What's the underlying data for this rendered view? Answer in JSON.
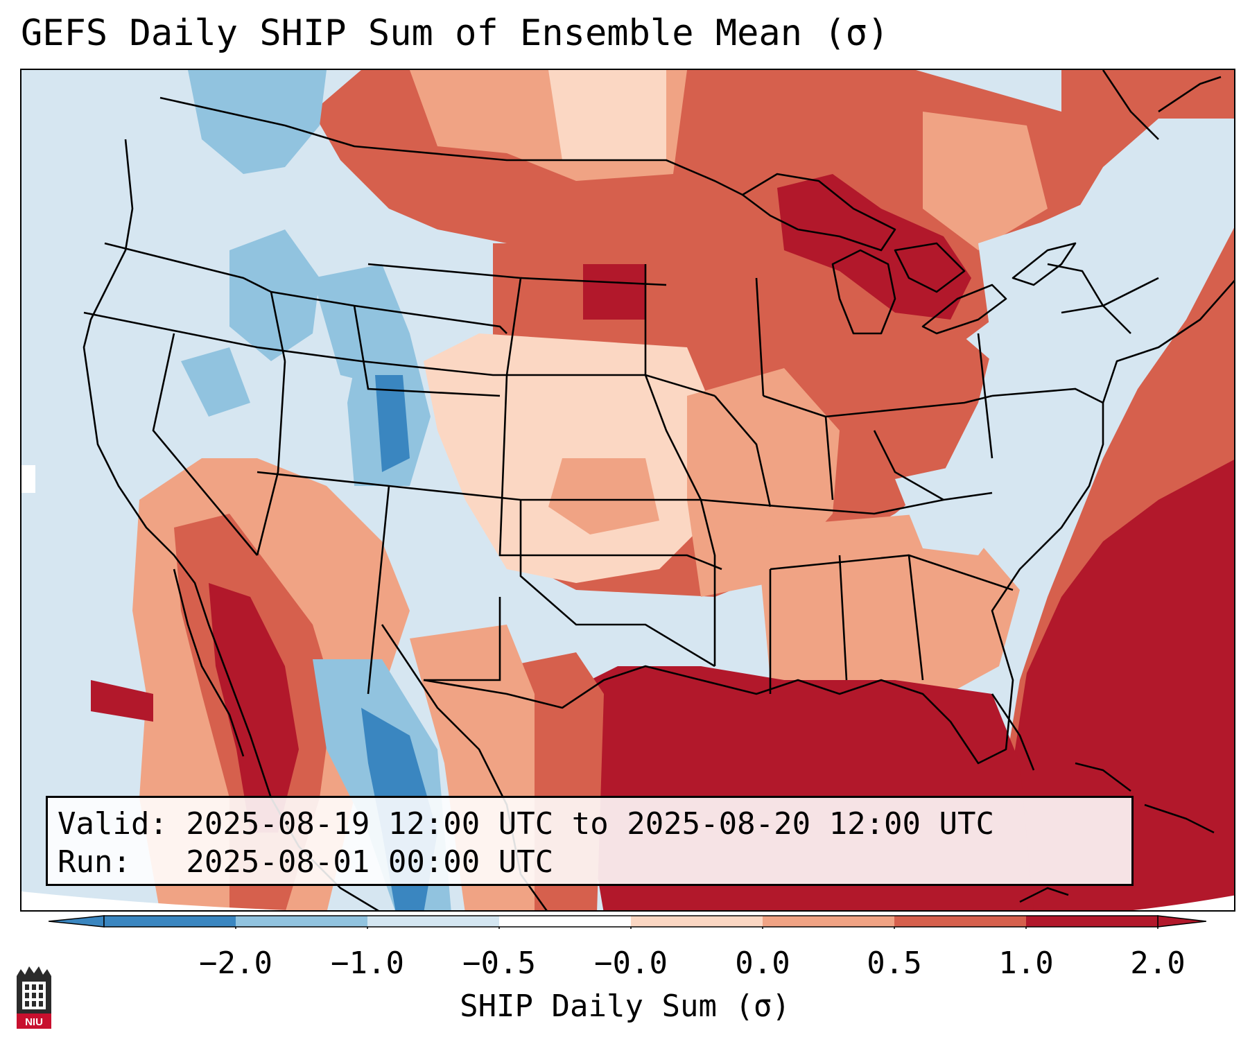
{
  "title": "GEFS Daily SHIP Sum of Ensemble Mean (σ)",
  "valid_line": "Valid: 2025-08-19 12:00 UTC to 2025-08-20 12:00 UTC",
  "run_line": "Run:   2025-08-01 00:00 UTC",
  "colorbar": {
    "label": "SHIP Daily Sum (σ)",
    "ticks": [
      "−2.0",
      "−1.0",
      "−0.5",
      "−0.0",
      "0.0",
      "0.5",
      "1.0",
      "2.0"
    ],
    "colors": [
      "#3a86c0",
      "#91c3df",
      "#d4e6f1",
      "#ffffff",
      "#fbd7c3",
      "#f0a384",
      "#d6604d",
      "#b2182b"
    ],
    "extend": "both"
  },
  "logo": {
    "text": "NIU",
    "icon": "niu-logo"
  }
}
